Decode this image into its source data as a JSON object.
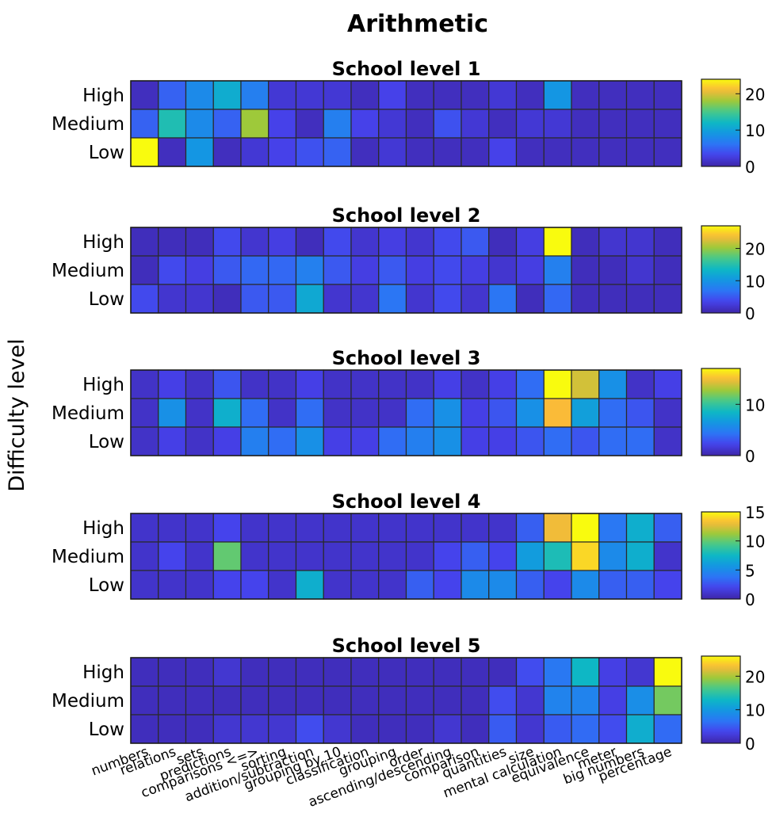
{
  "title": "Arithmetic",
  "ylabel": "Difficulty level",
  "chart_data": {
    "type": "heatmap",
    "title": "Arithmetic",
    "ylabel": "Difficulty level",
    "rows": [
      "High",
      "Medium",
      "Low"
    ],
    "categories": [
      "numbers",
      "relations",
      "sets",
      "predictions",
      "comparisons <=>",
      "sorting",
      "addition/subtraction",
      "grouping by 10",
      "classification",
      "grouping",
      "order",
      "ascending/descending",
      "comparison",
      "quantities",
      "size",
      "mental calculation",
      "equivalence",
      "meter",
      "big numbers",
      "percentage"
    ],
    "colormap": "parula",
    "panels": [
      {
        "title": "School level 1",
        "clim": [
          0,
          24
        ],
        "colorbar_ticks": [
          "0",
          "10",
          "20"
        ],
        "colorbar_tick_values": [
          0,
          10,
          20
        ],
        "values": [
          [
            1,
            5,
            8,
            11,
            7,
            2,
            2,
            2,
            1,
            3,
            1,
            1,
            1,
            2,
            1,
            9,
            1,
            1,
            1,
            1
          ],
          [
            5,
            13,
            8,
            5,
            18,
            3,
            1,
            7,
            3,
            2,
            1,
            4,
            2,
            1,
            2,
            2,
            1,
            1,
            1,
            1
          ],
          [
            24,
            1,
            9,
            1,
            2,
            3,
            4,
            5,
            1,
            2,
            1,
            1,
            1,
            3,
            1,
            1,
            1,
            1,
            1,
            1
          ]
        ]
      },
      {
        "title": "School level 2",
        "clim": [
          0,
          27
        ],
        "colorbar_ticks": [
          "0",
          "10",
          "20"
        ],
        "colorbar_tick_values": [
          0,
          10,
          20
        ],
        "values": [
          [
            1,
            1,
            1,
            4,
            2,
            3,
            1,
            4,
            2,
            3,
            2,
            4,
            5,
            1,
            3,
            27,
            1,
            2,
            2,
            1
          ],
          [
            1,
            4,
            3,
            5,
            6,
            6,
            8,
            5,
            3,
            5,
            3,
            4,
            3,
            2,
            3,
            8,
            1,
            1,
            2,
            1
          ],
          [
            4,
            2,
            2,
            1,
            5,
            5,
            12,
            2,
            2,
            7,
            2,
            4,
            2,
            7,
            1,
            6,
            1,
            1,
            1,
            1
          ]
        ]
      },
      {
        "title": "School level 3",
        "clim": [
          0,
          17
        ],
        "colorbar_ticks": [
          "0",
          "10"
        ],
        "colorbar_tick_values": [
          0,
          10
        ],
        "values": [
          [
            1,
            2,
            1,
            3,
            1,
            1,
            2,
            1,
            1,
            1,
            1,
            2,
            1,
            2,
            4,
            17,
            14,
            6,
            1,
            2
          ],
          [
            1,
            6,
            1,
            8,
            4,
            1,
            4,
            1,
            1,
            1,
            4,
            6,
            2,
            3,
            6,
            15,
            7,
            4,
            3,
            1
          ],
          [
            1,
            2,
            1,
            2,
            5,
            4,
            6,
            2,
            2,
            4,
            5,
            6,
            2,
            2,
            3,
            4,
            3,
            4,
            4,
            1
          ]
        ]
      },
      {
        "title": "School level 4",
        "clim": [
          0,
          15
        ],
        "colorbar_ticks": [
          "0",
          "5",
          "10",
          "15"
        ],
        "colorbar_tick_values": [
          0,
          5,
          10,
          15
        ],
        "values": [
          [
            1,
            1,
            1,
            2,
            1,
            1,
            1,
            1,
            1,
            1,
            1,
            1,
            1,
            1,
            3,
            13,
            15,
            4,
            7,
            3
          ],
          [
            1,
            2,
            1,
            10,
            1,
            1,
            1,
            1,
            1,
            1,
            1,
            2,
            3,
            2,
            6,
            8,
            14,
            5,
            7,
            1
          ],
          [
            1,
            1,
            1,
            2,
            2,
            1,
            7,
            1,
            1,
            1,
            3,
            2,
            5,
            5,
            3,
            2,
            5,
            3,
            3,
            2
          ]
        ]
      },
      {
        "title": "School level 5",
        "clim": [
          0,
          26
        ],
        "colorbar_ticks": [
          "0",
          "10",
          "20"
        ],
        "colorbar_tick_values": [
          0,
          10,
          20
        ],
        "values": [
          [
            1,
            1,
            1,
            2,
            1,
            1,
            1,
            1,
            1,
            1,
            1,
            1,
            1,
            1,
            4,
            7,
            13,
            3,
            2,
            26
          ],
          [
            1,
            1,
            1,
            1,
            1,
            1,
            1,
            1,
            1,
            1,
            1,
            1,
            1,
            4,
            2,
            8,
            8,
            3,
            9,
            18
          ],
          [
            1,
            1,
            1,
            2,
            2,
            2,
            4,
            2,
            1,
            1,
            1,
            2,
            1,
            5,
            2,
            5,
            6,
            4,
            12,
            6
          ]
        ]
      }
    ]
  }
}
